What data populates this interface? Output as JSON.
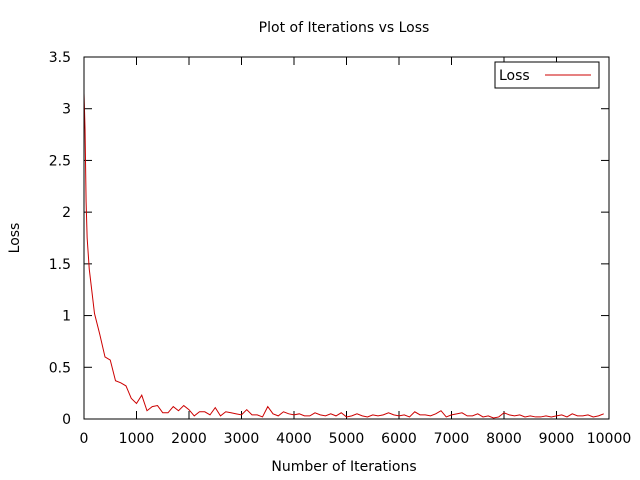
{
  "chart_data": {
    "type": "line",
    "title": "Plot of Iterations vs Loss",
    "xlabel": "Number of Iterations",
    "ylabel": "Loss",
    "xlim": [
      0,
      10000
    ],
    "ylim": [
      0,
      3.5
    ],
    "xticks": [
      0,
      1000,
      2000,
      3000,
      4000,
      5000,
      6000,
      7000,
      8000,
      9000,
      10000
    ],
    "yticks": [
      0,
      0.5,
      1,
      1.5,
      2,
      2.5,
      3,
      3.5
    ],
    "ytick_labels": [
      "0",
      "0.5",
      "1",
      "1.5",
      "2",
      "2.5",
      "3",
      "3.5"
    ],
    "grid": false,
    "legend_position": "top-right",
    "series": [
      {
        "name": "Loss",
        "color": "#cc0000",
        "x": [
          0,
          20,
          40,
          60,
          80,
          100,
          200,
          300,
          400,
          500,
          600,
          700,
          800,
          900,
          1000,
          1100,
          1200,
          1300,
          1400,
          1500,
          1600,
          1700,
          1800,
          1900,
          2000,
          2100,
          2200,
          2300,
          2400,
          2500,
          2600,
          2700,
          2800,
          2900,
          3000,
          3100,
          3200,
          3300,
          3400,
          3500,
          3600,
          3700,
          3800,
          3900,
          4000,
          4100,
          4200,
          4300,
          4400,
          4500,
          4600,
          4700,
          4800,
          4900,
          5000,
          5100,
          5200,
          5300,
          5400,
          5500,
          5600,
          5700,
          5800,
          5900,
          6000,
          6100,
          6200,
          6300,
          6400,
          6500,
          6600,
          6700,
          6800,
          6900,
          7000,
          7100,
          7200,
          7300,
          7400,
          7500,
          7600,
          7700,
          7800,
          7900,
          8000,
          8100,
          8200,
          8300,
          8400,
          8500,
          8600,
          8700,
          8800,
          8900,
          9000,
          9100,
          9200,
          9300,
          9400,
          9500,
          9600,
          9700,
          9800,
          9900
        ],
        "values": [
          3.15,
          2.8,
          2.1,
          1.75,
          1.6,
          1.45,
          1.02,
          0.82,
          0.6,
          0.57,
          0.37,
          0.35,
          0.32,
          0.2,
          0.15,
          0.23,
          0.08,
          0.12,
          0.13,
          0.06,
          0.06,
          0.12,
          0.08,
          0.13,
          0.09,
          0.03,
          0.07,
          0.07,
          0.04,
          0.11,
          0.03,
          0.07,
          0.06,
          0.05,
          0.04,
          0.09,
          0.04,
          0.04,
          0.02,
          0.12,
          0.05,
          0.03,
          0.07,
          0.05,
          0.04,
          0.05,
          0.03,
          0.03,
          0.06,
          0.04,
          0.03,
          0.05,
          0.03,
          0.06,
          0.02,
          0.03,
          0.05,
          0.03,
          0.02,
          0.04,
          0.03,
          0.04,
          0.06,
          0.04,
          0.03,
          0.04,
          0.02,
          0.07,
          0.04,
          0.04,
          0.03,
          0.05,
          0.08,
          0.02,
          0.04,
          0.05,
          0.06,
          0.03,
          0.03,
          0.05,
          0.02,
          0.03,
          0.01,
          0.02,
          0.06,
          0.04,
          0.03,
          0.04,
          0.02,
          0.03,
          0.02,
          0.02,
          0.03,
          0.02,
          0.03,
          0.04,
          0.02,
          0.05,
          0.03,
          0.03,
          0.04,
          0.02,
          0.03,
          0.05
        ]
      }
    ]
  }
}
